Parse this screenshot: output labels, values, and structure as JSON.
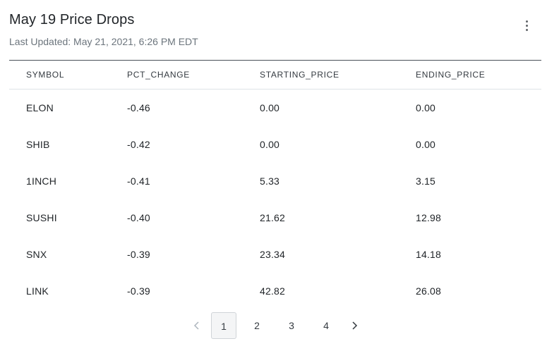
{
  "header": {
    "title": "May 19 Price Drops",
    "subtitle": "Last Updated: May 21, 2021, 6:26 PM EDT",
    "menu_icon": "more-vertical-icon"
  },
  "table": {
    "columns": [
      "SYMBOL",
      "PCT_CHANGE",
      "STARTING_PRICE",
      "ENDING_PRICE"
    ],
    "rows": [
      [
        "ELON",
        "-0.46",
        "0.00",
        "0.00"
      ],
      [
        "SHIB",
        "-0.42",
        "0.00",
        "0.00"
      ],
      [
        "1INCH",
        "-0.41",
        "5.33",
        "3.15"
      ],
      [
        "SUSHI",
        "-0.40",
        "21.62",
        "12.98"
      ],
      [
        "SNX",
        "-0.39",
        "23.34",
        "14.18"
      ],
      [
        "LINK",
        "-0.39",
        "42.82",
        "26.08"
      ]
    ]
  },
  "pagination": {
    "pages": [
      "1",
      "2",
      "3",
      "4"
    ],
    "current": "1",
    "prev_icon": "chevron-left-icon",
    "next_icon": "chevron-right-icon"
  }
}
